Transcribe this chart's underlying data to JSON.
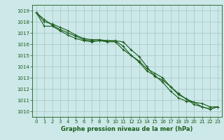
{
  "title": "Graphe pression niveau de la mer (hPa)",
  "background_color": "#cce8e8",
  "grid_color": "#aacccc",
  "line_color": "#1a5c1a",
  "xlim": [
    -0.5,
    23.5
  ],
  "ylim": [
    1009.5,
    1019.5
  ],
  "yticks": [
    1010,
    1011,
    1012,
    1013,
    1014,
    1015,
    1016,
    1017,
    1018,
    1019
  ],
  "xticks": [
    0,
    1,
    2,
    3,
    4,
    5,
    6,
    7,
    8,
    9,
    10,
    11,
    12,
    13,
    14,
    15,
    16,
    17,
    18,
    19,
    20,
    21,
    22,
    23
  ],
  "series1": [
    1018.8,
    1018.2,
    1017.7,
    1017.3,
    1017.0,
    1016.7,
    1016.4,
    1016.3,
    1016.3,
    1016.3,
    1016.3,
    1015.8,
    1015.0,
    1014.4,
    1013.6,
    1013.2,
    1012.6,
    1011.8,
    1011.2,
    1010.9,
    1010.8,
    1010.7,
    1010.4,
    1010.4
  ],
  "series2": [
    1018.8,
    1017.6,
    1017.6,
    1017.2,
    1016.8,
    1016.5,
    1016.3,
    1016.2,
    1016.3,
    1016.2,
    1016.2,
    1015.5,
    1015.0,
    1014.5,
    1013.8,
    1013.4,
    1013.0,
    1012.2,
    1011.5,
    1011.1,
    1010.6,
    1010.4,
    1010.2,
    1010.4
  ],
  "series3": [
    1018.8,
    1018.0,
    1017.8,
    1017.5,
    1017.2,
    1016.8,
    1016.5,
    1016.4,
    1016.4,
    1016.3,
    1016.3,
    1016.2,
    1015.5,
    1014.9,
    1014.0,
    1013.1,
    1012.8,
    1012.2,
    1011.6,
    1011.1,
    1010.8,
    1010.4,
    1010.2,
    1010.4
  ],
  "tick_fontsize": 5.0,
  "xlabel_fontsize": 6.0,
  "linewidth": 0.8,
  "markersize": 1.8
}
